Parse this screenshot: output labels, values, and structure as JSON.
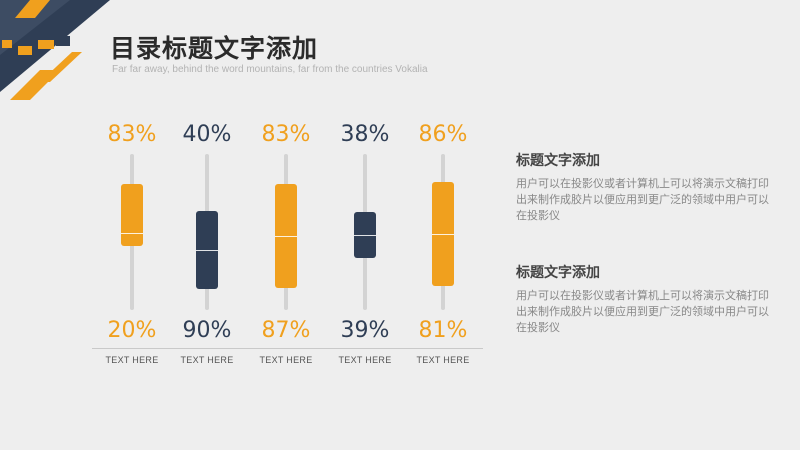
{
  "header": {
    "title": "目录标题文字添加",
    "subtitle": "Far far away, behind the word mountains, far from the countries Vokalia"
  },
  "colors": {
    "orange": "#f0a01e",
    "navy": "#2f3e55",
    "stem": "#d3d3d3"
  },
  "columns": [
    {
      "top_label": "83%",
      "bottom_label": "20%",
      "caption": "TEXT HERE",
      "color": "#f0a01e"
    },
    {
      "top_label": "40%",
      "bottom_label": "90%",
      "caption": "TEXT HERE",
      "color": "#2f3e55"
    },
    {
      "top_label": "83%",
      "bottom_label": "87%",
      "caption": "TEXT HERE",
      "color": "#f0a01e"
    },
    {
      "top_label": "38%",
      "bottom_label": "39%",
      "caption": "TEXT HERE",
      "color": "#2f3e55"
    },
    {
      "top_label": "86%",
      "bottom_label": "81%",
      "caption": "TEXT HERE",
      "color": "#f0a01e"
    }
  ],
  "text_blocks": [
    {
      "title": "标题文字添加",
      "body": "用户可以在投影仪或者计算机上可以将演示文稿打印出来制作成胶片以便应用到更广泛的领域中用户可以在投影仪"
    },
    {
      "title": "标题文字添加",
      "body": "用户可以在投影仪或者计算机上可以将演示文稿打印出来制作成胶片以便应用到更广泛的领域中用户可以在投影仪"
    }
  ]
}
